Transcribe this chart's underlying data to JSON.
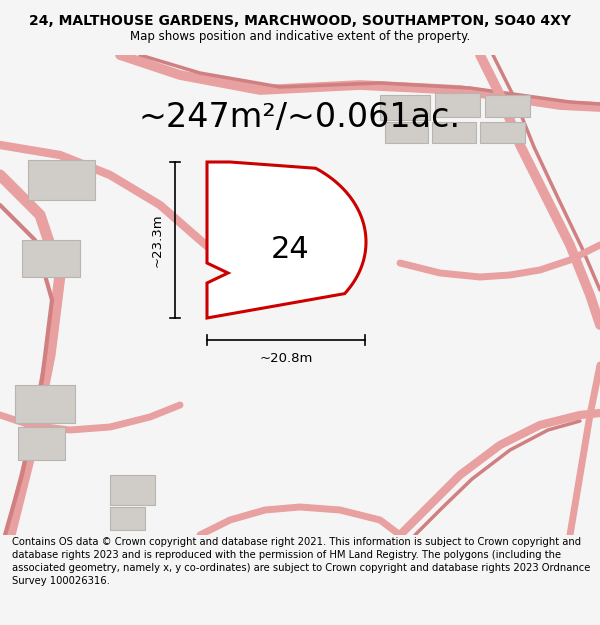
{
  "title": "24, MALTHOUSE GARDENS, MARCHWOOD, SOUTHAMPTON, SO40 4XY",
  "subtitle": "Map shows position and indicative extent of the property.",
  "area_label": "~247m²/~0.061ac.",
  "plot_number": "24",
  "dim_width": "~20.8m",
  "dim_height": "~23.3m",
  "footer": "Contains OS data © Crown copyright and database right 2021. This information is subject to Crown copyright and database rights 2023 and is reproduced with the permission of HM Land Registry. The polygons (including the associated geometry, namely x, y co-ordinates) are subject to Crown copyright and database rights 2023 Ordnance Survey 100026316.",
  "bg_color": "#f5f5f5",
  "map_bg": "#f0eeeb",
  "plot_color": "#cc0000",
  "road_color": "#e8a0a0",
  "road_color2": "#d08080",
  "building_color": "#d0ccc8",
  "building_edge": "#b8b4b0",
  "title_fontsize": 10,
  "subtitle_fontsize": 8.5,
  "area_fontsize": 24,
  "plot_number_fontsize": 22,
  "dim_fontsize": 9.5,
  "footer_fontsize": 7.2
}
